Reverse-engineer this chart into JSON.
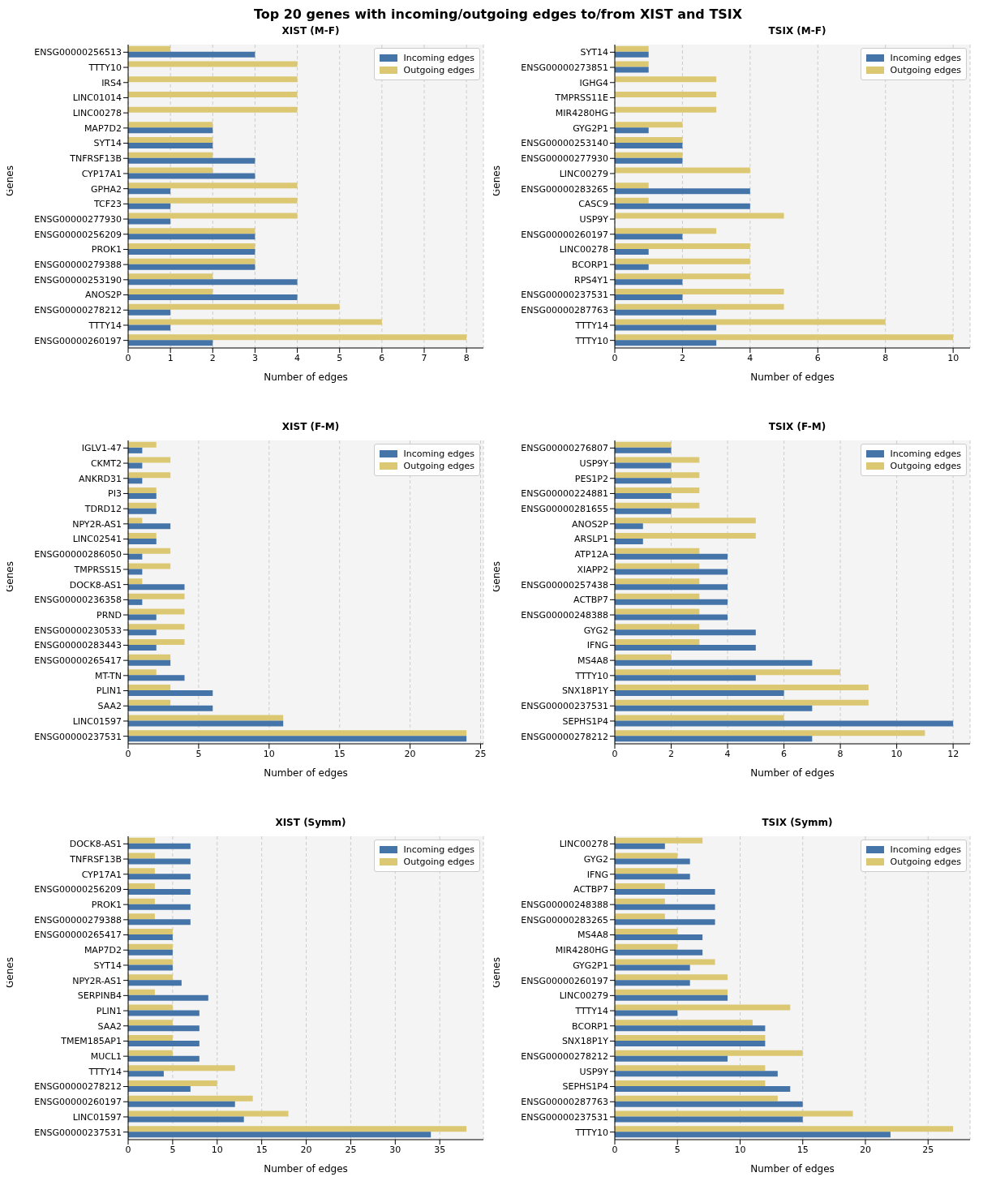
{
  "chart_data": [
    {
      "type": "bar",
      "orientation": "horizontal",
      "title": "XIST (M-F)",
      "annotations": [
        "Top 20 genes with incoming/outgoing edges to/from XIST and TSIX"
      ],
      "xlabel": "Number of edges",
      "ylabel": "Genes",
      "legend": "top right",
      "grid": "x",
      "xlim": [
        0,
        8.4
      ],
      "xticks": [
        0,
        1,
        2,
        3,
        4,
        5,
        6,
        7,
        8
      ],
      "categories": [
        "ENSG00000256513",
        "TTTY10",
        "IRS4",
        "LINC01014",
        "LINC00278",
        "MAP7D2",
        "SYT14",
        "TNFRSF13B",
        "CYP17A1",
        "GPHA2",
        "TCF23",
        "ENSG00000277930",
        "ENSG00000256209",
        "PROK1",
        "ENSG00000279388",
        "ENSG00000253190",
        "ANOS2P",
        "ENSG00000278212",
        "TTTY14",
        "ENSG00000260197"
      ],
      "series": [
        {
          "name": "Incoming edges",
          "color": "#4474a8",
          "values": [
            3,
            0,
            0,
            0,
            0,
            2,
            2,
            3,
            3,
            1,
            1,
            1,
            3,
            3,
            3,
            4,
            4,
            1,
            1,
            2
          ]
        },
        {
          "name": "Outgoing edges",
          "color": "#dcc872",
          "values": [
            1,
            4,
            4,
            4,
            4,
            2,
            2,
            2,
            2,
            4,
            4,
            4,
            3,
            3,
            3,
            2,
            2,
            5,
            6,
            8
          ]
        }
      ]
    },
    {
      "type": "bar",
      "orientation": "horizontal",
      "title": "TSIX (M-F)",
      "xlabel": "Number of edges",
      "ylabel": "Genes",
      "legend": "top right",
      "grid": "x",
      "xlim": [
        0,
        10.5
      ],
      "xticks": [
        0,
        2,
        4,
        6,
        8,
        10
      ],
      "categories": [
        "SYT14",
        "ENSG00000273851",
        "IGHG4",
        "TMPRSS11E",
        "MIR4280HG",
        "GYG2P1",
        "ENSG00000253140",
        "ENSG00000277930",
        "LINC00279",
        "ENSG00000283265",
        "CASC9",
        "USP9Y",
        "ENSG00000260197",
        "LINC00278",
        "BCORP1",
        "RPS4Y1",
        "ENSG00000237531",
        "ENSG00000287763",
        "TTTY14",
        "TTTY10"
      ],
      "series": [
        {
          "name": "Incoming edges",
          "color": "#4474a8",
          "values": [
            1,
            1,
            0,
            0,
            0,
            1,
            2,
            2,
            0,
            4,
            4,
            0,
            2,
            1,
            1,
            2,
            2,
            3,
            3,
            3
          ]
        },
        {
          "name": "Outgoing edges",
          "color": "#dcc872",
          "values": [
            1,
            1,
            3,
            3,
            3,
            2,
            2,
            2,
            4,
            1,
            1,
            5,
            3,
            4,
            4,
            4,
            5,
            5,
            8,
            10
          ]
        }
      ]
    },
    {
      "type": "bar",
      "orientation": "horizontal",
      "title": "XIST (F-M)",
      "xlabel": "Number of edges",
      "ylabel": "Genes",
      "legend": "top right",
      "grid": "x",
      "xlim": [
        0,
        25.2
      ],
      "xticks": [
        0,
        5,
        10,
        15,
        20,
        25
      ],
      "categories": [
        "IGLV1-47",
        "CKMT2",
        "ANKRD31",
        "PI3",
        "TDRD12",
        "NPY2R-AS1",
        "LINC02541",
        "ENSG00000286050",
        "TMPRSS15",
        "DOCK8-AS1",
        "ENSG00000236358",
        "PRND",
        "ENSG00000230533",
        "ENSG00000283443",
        "ENSG00000265417",
        "MT-TN",
        "PLIN1",
        "SAA2",
        "LINC01597",
        "ENSG00000237531"
      ],
      "series": [
        {
          "name": "Incoming edges",
          "color": "#4474a8",
          "values": [
            1,
            1,
            1,
            2,
            2,
            3,
            2,
            1,
            1,
            4,
            1,
            2,
            2,
            2,
            3,
            4,
            6,
            6,
            11,
            24
          ]
        },
        {
          "name": "Outgoing edges",
          "color": "#dcc872",
          "values": [
            2,
            3,
            3,
            2,
            2,
            1,
            2,
            3,
            3,
            1,
            4,
            4,
            4,
            4,
            3,
            2,
            3,
            3,
            11,
            24
          ]
        }
      ]
    },
    {
      "type": "bar",
      "orientation": "horizontal",
      "title": "TSIX (F-M)",
      "xlabel": "Number of edges",
      "ylabel": "Genes",
      "legend": "top right",
      "grid": "x",
      "xlim": [
        0,
        12.6
      ],
      "xticks": [
        0,
        2,
        4,
        6,
        8,
        10,
        12
      ],
      "categories": [
        "ENSG00000276807",
        "USP9Y",
        "PES1P2",
        "ENSG00000224881",
        "ENSG00000281655",
        "ANOS2P",
        "ARSLP1",
        "ATP12A",
        "XIAPP2",
        "ENSG00000257438",
        "ACTBP7",
        "ENSG00000248388",
        "GYG2",
        "IFNG",
        "MS4A8",
        "TTTY10",
        "SNX18P1Y",
        "ENSG00000237531",
        "SEPHS1P4",
        "ENSG00000278212"
      ],
      "series": [
        {
          "name": "Incoming edges",
          "color": "#4474a8",
          "values": [
            2,
            2,
            2,
            2,
            2,
            1,
            1,
            4,
            4,
            4,
            4,
            4,
            5,
            5,
            7,
            5,
            6,
            7,
            12,
            7
          ]
        },
        {
          "name": "Outgoing edges",
          "color": "#dcc872",
          "values": [
            2,
            3,
            3,
            3,
            3,
            5,
            5,
            3,
            3,
            3,
            3,
            3,
            3,
            3,
            2,
            8,
            9,
            9,
            6,
            11
          ]
        }
      ]
    },
    {
      "type": "bar",
      "orientation": "horizontal",
      "title": "XIST (Symm)",
      "xlabel": "Number of edges",
      "ylabel": "Genes",
      "legend": "top right",
      "grid": "x",
      "xlim": [
        0,
        39.9
      ],
      "xticks": [
        0,
        5,
        10,
        15,
        20,
        25,
        30,
        35
      ],
      "categories": [
        "DOCK8-AS1",
        "TNFRSF13B",
        "CYP17A1",
        "ENSG00000256209",
        "PROK1",
        "ENSG00000279388",
        "ENSG00000265417",
        "MAP7D2",
        "SYT14",
        "NPY2R-AS1",
        "SERPINB4",
        "PLIN1",
        "SAA2",
        "TMEM185AP1",
        "MUCL1",
        "TTTY14",
        "ENSG00000278212",
        "ENSG00000260197",
        "LINC01597",
        "ENSG00000237531"
      ],
      "series": [
        {
          "name": "Incoming edges",
          "color": "#4474a8",
          "values": [
            7,
            7,
            7,
            7,
            7,
            7,
            5,
            5,
            5,
            6,
            9,
            8,
            8,
            8,
            8,
            4,
            7,
            12,
            13,
            34
          ]
        },
        {
          "name": "Outgoing edges",
          "color": "#dcc872",
          "values": [
            3,
            3,
            3,
            3,
            3,
            3,
            5,
            5,
            5,
            5,
            3,
            5,
            5,
            5,
            5,
            12,
            10,
            14,
            18,
            38
          ]
        }
      ]
    },
    {
      "type": "bar",
      "orientation": "horizontal",
      "title": "TSIX (Symm)",
      "xlabel": "Number of edges",
      "ylabel": "Genes",
      "legend": "top right",
      "grid": "x",
      "xlim": [
        0,
        28.35
      ],
      "xticks": [
        0,
        5,
        10,
        15,
        20,
        25
      ],
      "categories": [
        "LINC00278",
        "GYG2",
        "IFNG",
        "ACTBP7",
        "ENSG00000248388",
        "ENSG00000283265",
        "MS4A8",
        "MIR4280HG",
        "GYG2P1",
        "ENSG00000260197",
        "LINC00279",
        "TTTY14",
        "BCORP1",
        "SNX18P1Y",
        "ENSG00000278212",
        "USP9Y",
        "SEPHS1P4",
        "ENSG00000287763",
        "ENSG00000237531",
        "TTTY10"
      ],
      "series": [
        {
          "name": "Incoming edges",
          "color": "#4474a8",
          "values": [
            4,
            6,
            6,
            8,
            8,
            8,
            7,
            7,
            6,
            6,
            9,
            5,
            12,
            12,
            9,
            13,
            14,
            15,
            15,
            22
          ]
        },
        {
          "name": "Outgoing edges",
          "color": "#dcc872",
          "values": [
            7,
            5,
            5,
            4,
            4,
            4,
            5,
            5,
            8,
            9,
            9,
            14,
            11,
            12,
            15,
            12,
            12,
            13,
            19,
            27
          ]
        }
      ]
    }
  ]
}
